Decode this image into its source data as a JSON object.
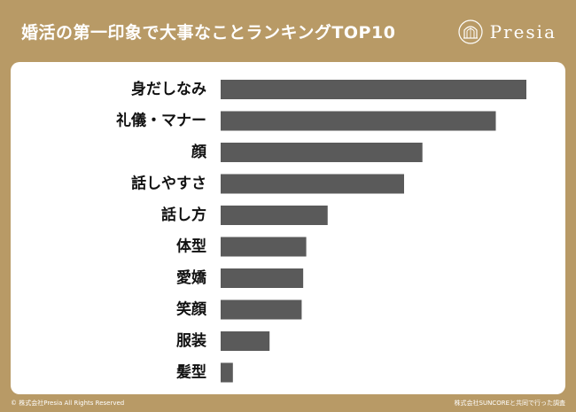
{
  "header": {
    "title": "婚活の第一印象で大事なことランキングTOP10",
    "logo_text": "Presia",
    "logo_icon": "arch-emblem-icon"
  },
  "footer": {
    "copyright": "© 株式会社Presia All Rights Reserved",
    "source": "株式会社SUNCOREと共同で行った調査"
  },
  "colors": {
    "background": "#b89a66",
    "panel": "#ffffff",
    "bar": "#5a5a5a",
    "label": "#111111"
  },
  "chart_data": {
    "type": "bar",
    "orientation": "horizontal",
    "categories": [
      "身だしなみ",
      "礼儀・マナー",
      "顔",
      "話しやすさ",
      "話し方",
      "体型",
      "愛嬌",
      "笑顔",
      "服装",
      "髪型"
    ],
    "values": [
      100,
      90,
      66,
      60,
      35,
      28,
      27,
      26.5,
      16,
      4
    ],
    "xlim": [
      0,
      100
    ],
    "grid": false,
    "legend": "none"
  }
}
